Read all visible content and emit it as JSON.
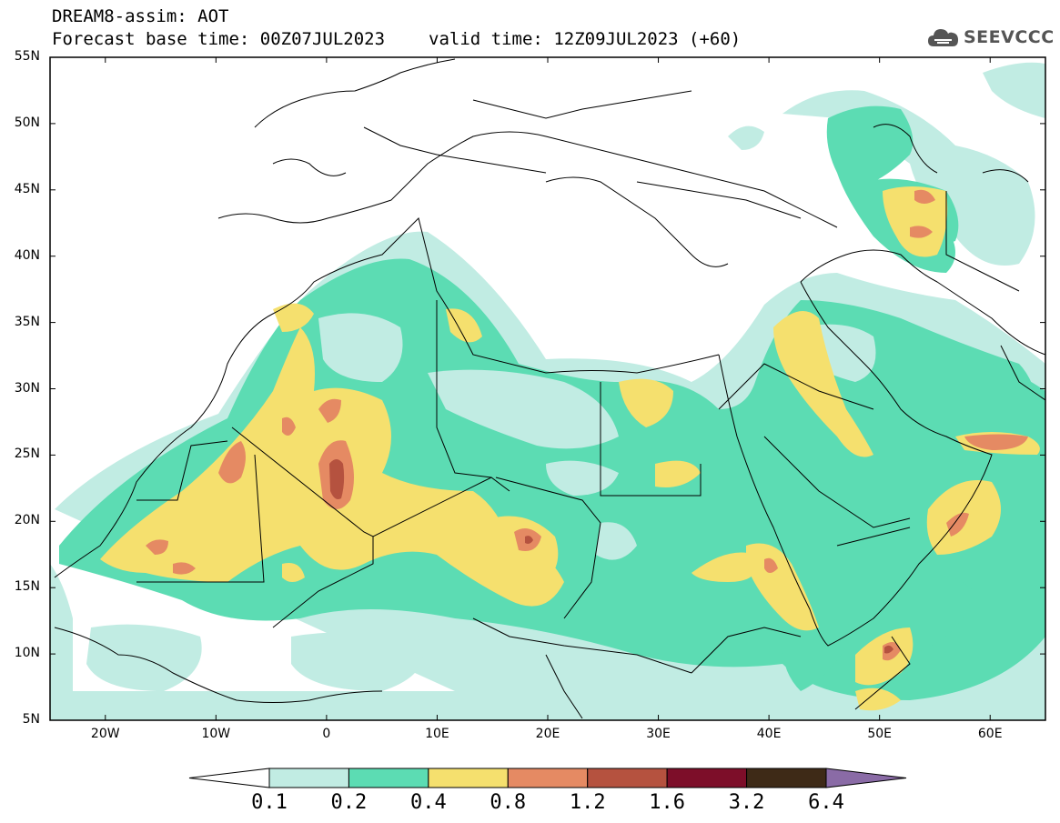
{
  "header": {
    "title_line1": "DREAM8-assim: AOT",
    "base_time": "Forecast base time: 00Z07JUL2023",
    "valid_time": "valid time: 12Z09JUL2023 (+60)"
  },
  "logo": {
    "text": "SEEVCCC",
    "icon": "cloud-icon"
  },
  "map": {
    "lon_range": [
      -25,
      65
    ],
    "lat_range": [
      5,
      55
    ],
    "lat_labels": [
      "55N",
      "50N",
      "45N",
      "40N",
      "35N",
      "30N",
      "25N",
      "20N",
      "15N",
      "10N",
      "5N"
    ],
    "lon_labels": [
      "20W",
      "10W",
      "0",
      "10E",
      "20E",
      "30E",
      "40E",
      "50E",
      "60E"
    ],
    "background": "#ffffff"
  },
  "colorbar": {
    "colors": [
      "#ffffff",
      "#c1ece3",
      "#5cdcb3",
      "#f5e06e",
      "#e58a63",
      "#b5523f",
      "#7d0e29",
      "#3e2a17",
      "#8a6ba6"
    ],
    "labels": [
      "0.1",
      "0.2",
      "0.4",
      "0.8",
      "1.2",
      "1.6",
      "3.2",
      "6.4"
    ]
  },
  "field_colors": {
    "l1": "#c1ece3",
    "l2": "#5cdcb3",
    "l3": "#f5e06e",
    "l4": "#e58a63",
    "l5": "#b5523f"
  }
}
